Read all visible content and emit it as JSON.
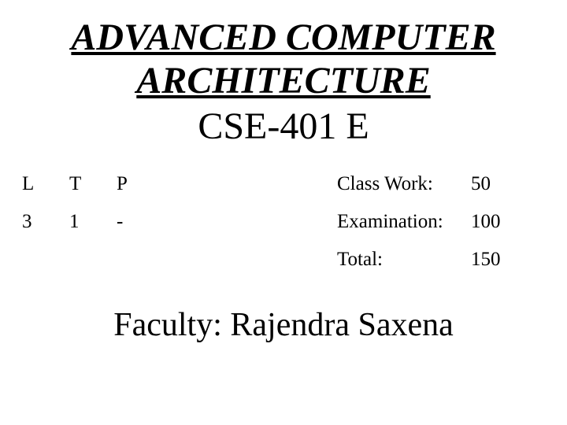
{
  "title": {
    "line1": "ADVANCED COMPUTER",
    "line2": "ARCHITECTURE",
    "course_code": "CSE-401 E"
  },
  "ltp_headers": {
    "L": "L",
    "T": "T",
    "P": "P"
  },
  "ltp_values": {
    "L": "3",
    "T": "1",
    "P": "-"
  },
  "marks": {
    "class_work_label": "Class Work:",
    "class_work_value": "50",
    "examination_label": "Examination:",
    "examination_value": "100",
    "total_label": "Total:",
    "total_value": "150"
  },
  "faculty": "Faculty: Rajendra Saxena",
  "style": {
    "background_color": "#ffffff",
    "text_color": "#000000",
    "title_fontsize": 48,
    "course_code_fontsize": 48,
    "body_fontsize": 25,
    "faculty_fontsize": 42,
    "font_family": "Times New Roman"
  }
}
